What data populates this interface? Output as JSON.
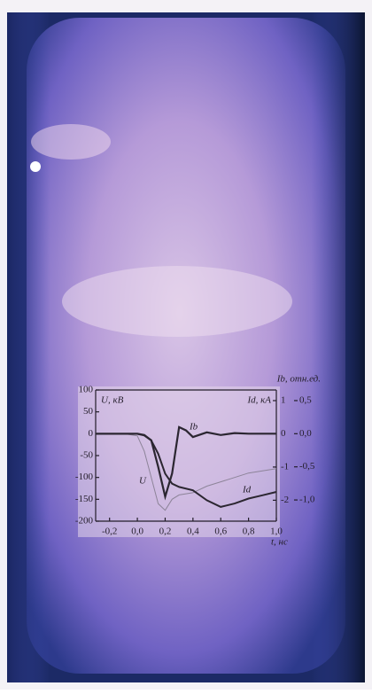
{
  "chart_data": {
    "type": "line",
    "xlabel": "t, нс",
    "ylabel": "U, кВ",
    "y2label": "Id, кА",
    "y3label": "Ib, отн.ед.",
    "xlim": [
      -0.3,
      1.0
    ],
    "xticks": [
      {
        "value": -0.2,
        "label": "-0,2"
      },
      {
        "value": 0.0,
        "label": "0,0"
      },
      {
        "value": 0.2,
        "label": "0,2"
      },
      {
        "value": 0.4,
        "label": "0,4"
      },
      {
        "value": 0.6,
        "label": "0,6"
      },
      {
        "value": 0.8,
        "label": "0,8"
      },
      {
        "value": 1.0,
        "label": "1,0"
      }
    ],
    "ylim": [
      -200,
      100
    ],
    "yticks": [
      100,
      50,
      0,
      -50,
      -100,
      -150,
      -200
    ],
    "y2lim": [
      -2.63,
      1.32
    ],
    "y2ticks": [
      1,
      0,
      -1,
      -2
    ],
    "y3lim": [
      -1.32,
      0.66
    ],
    "y3ticks": [
      {
        "value": 0.5,
        "label": "0,5"
      },
      {
        "value": 0.0,
        "label": "0,0"
      },
      {
        "value": -0.5,
        "label": "-0,5"
      },
      {
        "value": -1.0,
        "label": "-1,0"
      }
    ],
    "series": [
      {
        "name": "U",
        "color": "#8d8499",
        "width": 1,
        "axis": "y",
        "x": [
          -0.3,
          -0.2,
          -0.1,
          0.0,
          0.05,
          0.1,
          0.15,
          0.2,
          0.25,
          0.3,
          0.4,
          0.5,
          0.6,
          0.7,
          0.8,
          0.9,
          1.0
        ],
        "values": [
          0,
          0,
          0,
          -5,
          -40,
          -100,
          -160,
          -175,
          -150,
          -140,
          -135,
          -120,
          -110,
          -100,
          -90,
          -85,
          -80
        ]
      },
      {
        "name": "Ib",
        "color": "#2b2631",
        "width": 2.2,
        "axis": "y3",
        "x": [
          -0.3,
          -0.2,
          -0.1,
          0.0,
          0.05,
          0.1,
          0.15,
          0.2,
          0.25,
          0.3,
          0.35,
          0.4,
          0.5,
          0.6,
          0.7,
          0.8,
          1.0
        ],
        "values": [
          0,
          0,
          0,
          0,
          -0.02,
          -0.1,
          -0.5,
          -0.95,
          -0.6,
          0.1,
          0.05,
          -0.05,
          0.02,
          -0.02,
          0.01,
          0,
          0
        ]
      },
      {
        "name": "Id",
        "color": "#2b2631",
        "width": 2,
        "axis": "y2",
        "x": [
          -0.3,
          -0.2,
          -0.1,
          0.0,
          0.05,
          0.1,
          0.15,
          0.2,
          0.25,
          0.3,
          0.4,
          0.5,
          0.6,
          0.7,
          0.8,
          0.9,
          1.0
        ],
        "values": [
          0,
          0,
          0,
          0,
          -0.05,
          -0.2,
          -0.6,
          -1.2,
          -1.5,
          -1.6,
          -1.7,
          -2.0,
          -2.2,
          -2.1,
          -1.95,
          -1.85,
          -1.75
        ]
      }
    ]
  }
}
